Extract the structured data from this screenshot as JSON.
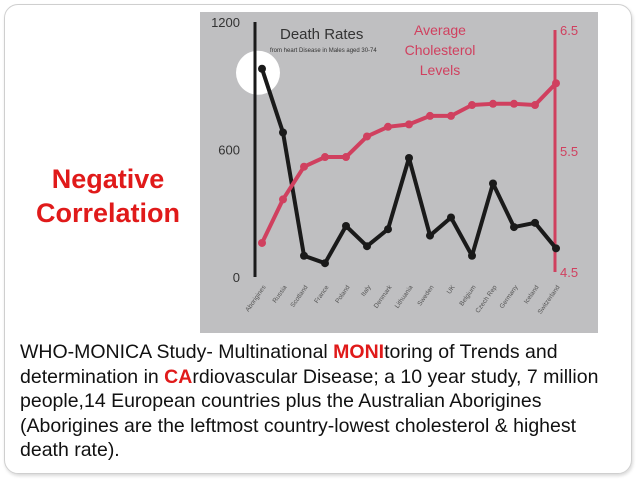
{
  "slide": {
    "heading_line1": "Negative",
    "heading_line2": "Correlation",
    "description": {
      "part1": "WHO-MONICA Study- Multinational ",
      "highlight1": "MONI",
      "part2": "toring of Trends and determination in ",
      "highlight2": "CA",
      "part3": "rdiovascular Disease; a 10 year study, 7 million people,14  European countries plus the Australian Aborigines (Aborigines are the leftmost country-lowest cholesterol & highest death rate)."
    }
  },
  "chart_data": {
    "type": "line",
    "title": "Death Rates",
    "subtitle": "from heart Disease in Males aged 30-74",
    "right_title": "Average Cholesterol Levels",
    "categories": [
      "Aborigines",
      "Russia",
      "Scotland",
      "France",
      "Poland",
      "Italy",
      "Denmark",
      "Lithuania",
      "Sweden",
      "UK",
      "Belgium",
      "Czech Rep",
      "Germany",
      "Iceland",
      "Switzerland"
    ],
    "series": [
      {
        "name": "Death Rates",
        "axis": "left",
        "color": "#1a1a1a",
        "values": [
          980,
          680,
          100,
          65,
          240,
          145,
          225,
          560,
          195,
          280,
          100,
          440,
          235,
          255,
          135
        ]
      },
      {
        "name": "Average Cholesterol Levels",
        "axis": "right",
        "color": "#d0405f",
        "values": [
          4.74,
          5.1,
          5.37,
          5.45,
          5.45,
          5.62,
          5.7,
          5.72,
          5.79,
          5.79,
          5.88,
          5.89,
          5.89,
          5.88,
          6.06
        ]
      }
    ],
    "left_axis": {
      "ylim": [
        0,
        1200
      ],
      "ticks": [
        "0",
        "600",
        "1200"
      ]
    },
    "right_axis": {
      "ylim": [
        4.5,
        6.5
      ],
      "ticks": [
        "4.5",
        "5.5",
        "6.5"
      ]
    },
    "highlight": "Aborigines",
    "grid": false,
    "background": "#bfbfc1"
  }
}
